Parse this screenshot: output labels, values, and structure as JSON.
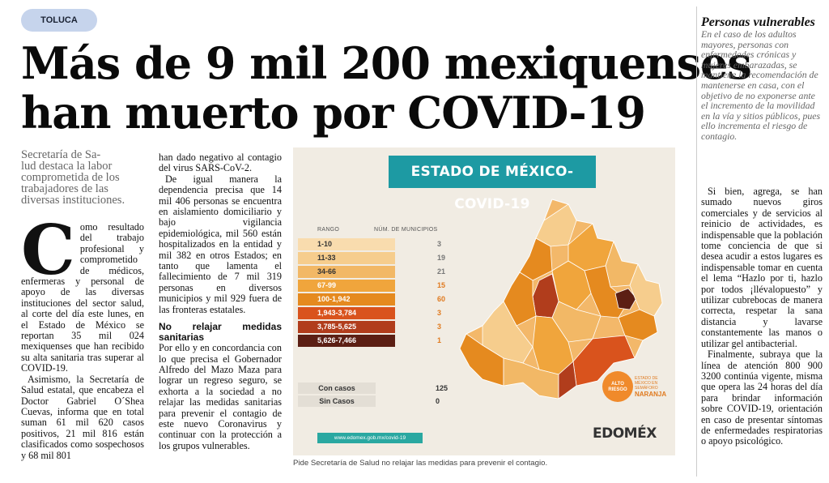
{
  "section_tag": "TOLUCA",
  "headline": {
    "line1": "Más de 9 mil 200 mexiquenses",
    "line2": "han muerto por COVID-19"
  },
  "subhead": {
    "lines": [
      "Secretaría de Sa-",
      "lud destaca la labor",
      "comprometida de los",
      "trabajadores de las",
      "diversas instituciones."
    ]
  },
  "article": {
    "dropcap": "C",
    "p1_after_dropcap": "omo resultado del trabajo profesional y comprometido de médicos, enfermeras y personal de apoyo de las diversas instituciones del sector salud, al corte del día este lunes, en el Estado de México se reportan 35 mil 024 mexiquenses que han recibido su alta sanitaria tras superar al COVID-19.",
    "p2": "Asimismo, la Secretaría de Salud estatal, que encabeza el Doctor Gabriel O´Shea Cuevas, informa que en total suman 61 mil 620 casos positivos, 21 mil 816 están clasificados como sospechosos y 68 mil 801",
    "c2_p1": "han dado negativo al contagio del virus SARS-CoV-2.",
    "c2_p2": "De igual manera la dependencia precisa que 14 mil 406 personas se encuentra en aislamiento domiciliario y bajo vigilancia epidemiológica, mil 560 están hospitalizados en la entidad y mil 382 en otros Estados; en tanto que lamenta el fallecimiento de 7 mil 319 personas en diversos municipios y mil 929 fuera de las fronteras estatales.",
    "c2_subtitle": "No relajar medidas sanitarias",
    "c2_p3": "Por ello y en concordancia con lo que precisa el Gobernador Alfredo del Mazo Maza para lograr un regreso seguro, se exhorta a la sociedad a no relajar las medidas sanitarias para prevenir el contagio de este nuevo Coronavirus y continuar con la protección a los grupos vulnerables.",
    "c3_p1": "Si bien, agrega, se han sumado nuevos giros comerciales y de servicios al reinicio de actividades, es indispensable que la población tome conciencia de que si desea acudir a estos lugares es indispensable tomar en cuenta el lema “Hazlo por ti, hazlo por todos ¡llévalopuesto” y utilizar cubrebocas de manera correcta, respetar la sana distancia y lavarse constantemente las manos o utilizar gel antibacterial.",
    "c3_p2": "Finalmente, subraya que la línea de atención 800 900 3200 continúa vigente, misma que opera las 24 horas del día para brindar información sobre COVID-19, orientación en caso de presentar síntomas de enfermedades respiratorias o apoyo psicológico."
  },
  "sidebar": {
    "title": "Personas vulnerables",
    "body": "En el caso de los adultos mayores, personas con enfermedades crónicas y mujeres embarazadas, se mantiene la recomendación de mantenerse en casa, con el objetivo de no exponerse ante el incremento de la movilidad en la vía y sitios públicos, pues ello incrementa el riesgo de contagio."
  },
  "infographic": {
    "title": "ESTADO DE MÉXICO-COVID-19",
    "header_rango": "RANGO",
    "header_municipios": "NÚM. DE MUNICIPIOS",
    "ranges": [
      {
        "label": "1-10",
        "count": "3",
        "color": "#f9dcae",
        "text": "#333"
      },
      {
        "label": "11-33",
        "count": "19",
        "color": "#f6cd8d",
        "text": "#333"
      },
      {
        "label": "34-66",
        "count": "21",
        "color": "#f2b866",
        "text": "#333"
      },
      {
        "label": "67-99",
        "count": "15",
        "color": "#f0a53c",
        "text": "#fff"
      },
      {
        "label": "100-1,942",
        "count": "60",
        "color": "#e58a1f",
        "text": "#fff"
      },
      {
        "label": "1,943-3,784",
        "count": "3",
        "color": "#d9531d",
        "text": "#fff"
      },
      {
        "label": "3,785-5,625",
        "count": "3",
        "color": "#b13d1c",
        "text": "#fff"
      },
      {
        "label": "5,626-7,466",
        "count": "1",
        "color": "#5c1f14",
        "text": "#fff"
      }
    ],
    "con_casos_label": "Con casos",
    "con_casos_count": "125",
    "sin_casos_label": "Sin Casos",
    "sin_casos_count": "0",
    "url": "www.edomex.gob.mx/covid-19",
    "badge_text": "ALTO RIESGO",
    "semaforo_line1": "ESTADO DE MÉXICO EN SEMÁFORO",
    "semaforo_line2": "NARANJA",
    "logo": "EDOMÉX"
  },
  "caption": "Pide Secretaría de Salud no relajar las medidas para prevenir el contagio."
}
